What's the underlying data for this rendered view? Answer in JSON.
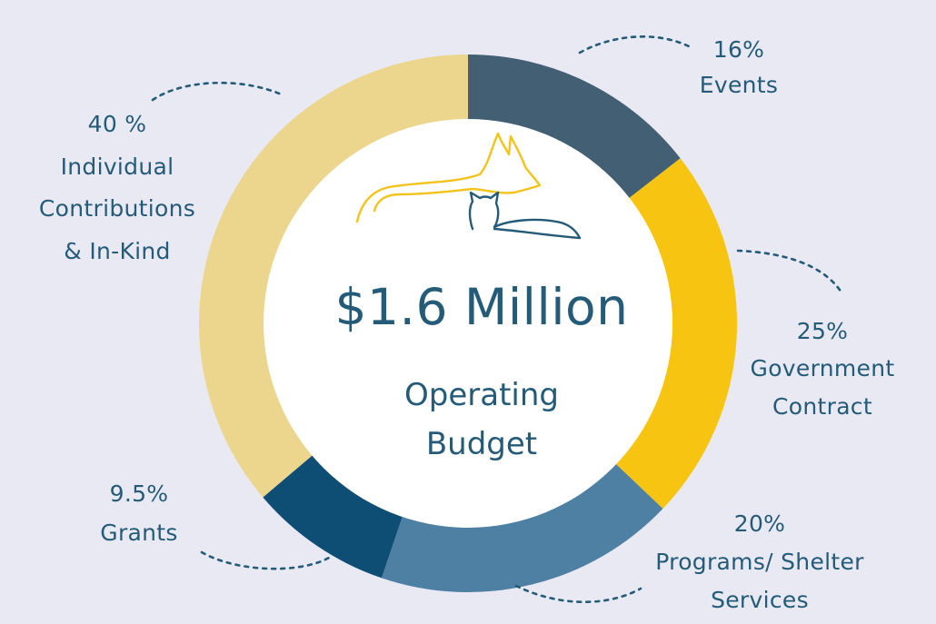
{
  "chart_data": {
    "type": "pie",
    "title": "$1.6 Million",
    "subtitle_lines": [
      "Operating",
      "Budget"
    ],
    "slices": [
      {
        "percent_label": "16%",
        "name_lines": [
          "Events"
        ],
        "value": 16,
        "color": "#425f74"
      },
      {
        "percent_label": "25%",
        "name_lines": [
          "Government",
          "Contract"
        ],
        "value": 25,
        "color": "#f7c511"
      },
      {
        "percent_label": "20%",
        "name_lines": [
          "Programs/ Shelter",
          "Services"
        ],
        "value": 20,
        "color": "#4e80a4"
      },
      {
        "percent_label": "9.5%",
        "name_lines": [
          "Grants"
        ],
        "value": 9.5,
        "color": "#0f4e74"
      },
      {
        "percent_label": "40 %",
        "name_lines": [
          "Individual",
          "Contributions",
          "& In-Kind"
        ],
        "value": 40,
        "color": "#ecd58c"
      }
    ]
  },
  "colors": {
    "background": "#e9e9f3",
    "text": "#245b78",
    "leader_line": "#245b78",
    "logo_dog": "#f2c31b",
    "logo_cat": "#245b78"
  },
  "icons": [
    "dog-and-cat-logo-icon"
  ]
}
